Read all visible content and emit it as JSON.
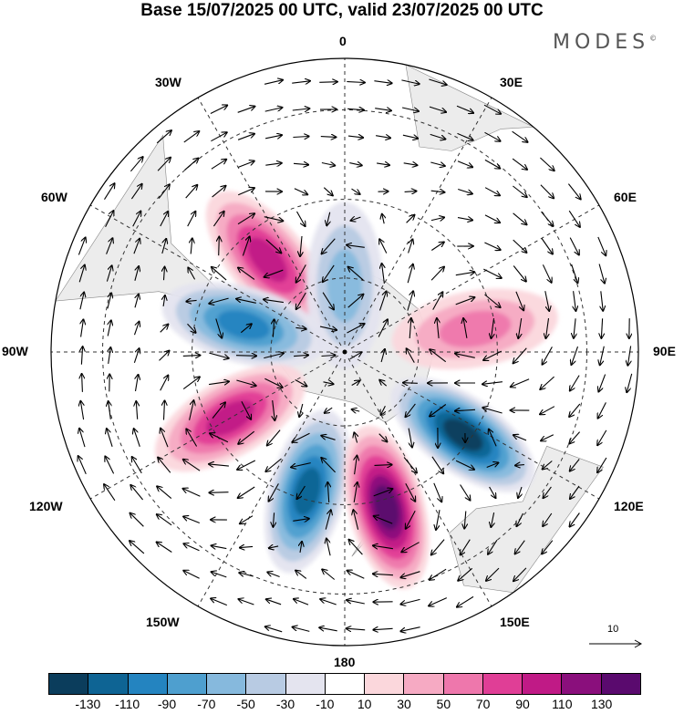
{
  "header": {
    "title": "Base 15/07/2025 00 UTC, valid 23/07/2025 00 UTC",
    "brand": "MODES",
    "brand_mark": "©"
  },
  "map": {
    "projection": "south-polar-stereographic",
    "longitude_labels": {
      "lon_0": "0",
      "lon_30e": "30E",
      "lon_60e": "60E",
      "lon_90e": "90E",
      "lon_120e": "120E",
      "lon_150e": "150E",
      "lon_180": "180",
      "lon_150w": "150W",
      "lon_120w": "120W",
      "lon_90w": "90W",
      "lon_60w": "60W",
      "lon_30w": "30W"
    },
    "anomaly_centers": [
      {
        "id": "pos-30w",
        "sign": "positive",
        "lon": -40,
        "lat": -58,
        "peak": 90
      },
      {
        "id": "neg-60w",
        "sign": "negative",
        "lon": -75,
        "lat": -62,
        "peak": -90
      },
      {
        "id": "pos-100w",
        "sign": "positive",
        "lon": -120,
        "lat": -55,
        "peak": 90
      },
      {
        "id": "neg-150w",
        "sign": "negative",
        "lon": -165,
        "lat": -52,
        "peak": -110
      },
      {
        "id": "pos-170e",
        "sign": "positive",
        "lon": 165,
        "lat": -48,
        "peak": 130
      },
      {
        "id": "neg-130e",
        "sign": "negative",
        "lon": 125,
        "lat": -52,
        "peak": -130
      },
      {
        "id": "pos-80e",
        "sign": "positive",
        "lon": 80,
        "lat": -55,
        "peak": 50
      },
      {
        "id": "neg-10e",
        "sign": "negative",
        "lon": 0,
        "lat": -72,
        "peak": -50
      }
    ],
    "vector_scale_label": "10"
  },
  "colorbar": {
    "colors": [
      "#0b3d5c",
      "#0e6494",
      "#2484c0",
      "#4e9fcf",
      "#86b9dd",
      "#b8cbe3",
      "#e4e4ef",
      "#ffffff",
      "#fbd7dc",
      "#f6aac3",
      "#ee77ac",
      "#e03e96",
      "#c01a86",
      "#8a0f7c",
      "#5a0a6e"
    ],
    "tick_labels": [
      "-130",
      "-110",
      "-90",
      "-70",
      "-50",
      "-30",
      "-10",
      "10",
      "30",
      "50",
      "70",
      "90",
      "110",
      "130"
    ]
  }
}
